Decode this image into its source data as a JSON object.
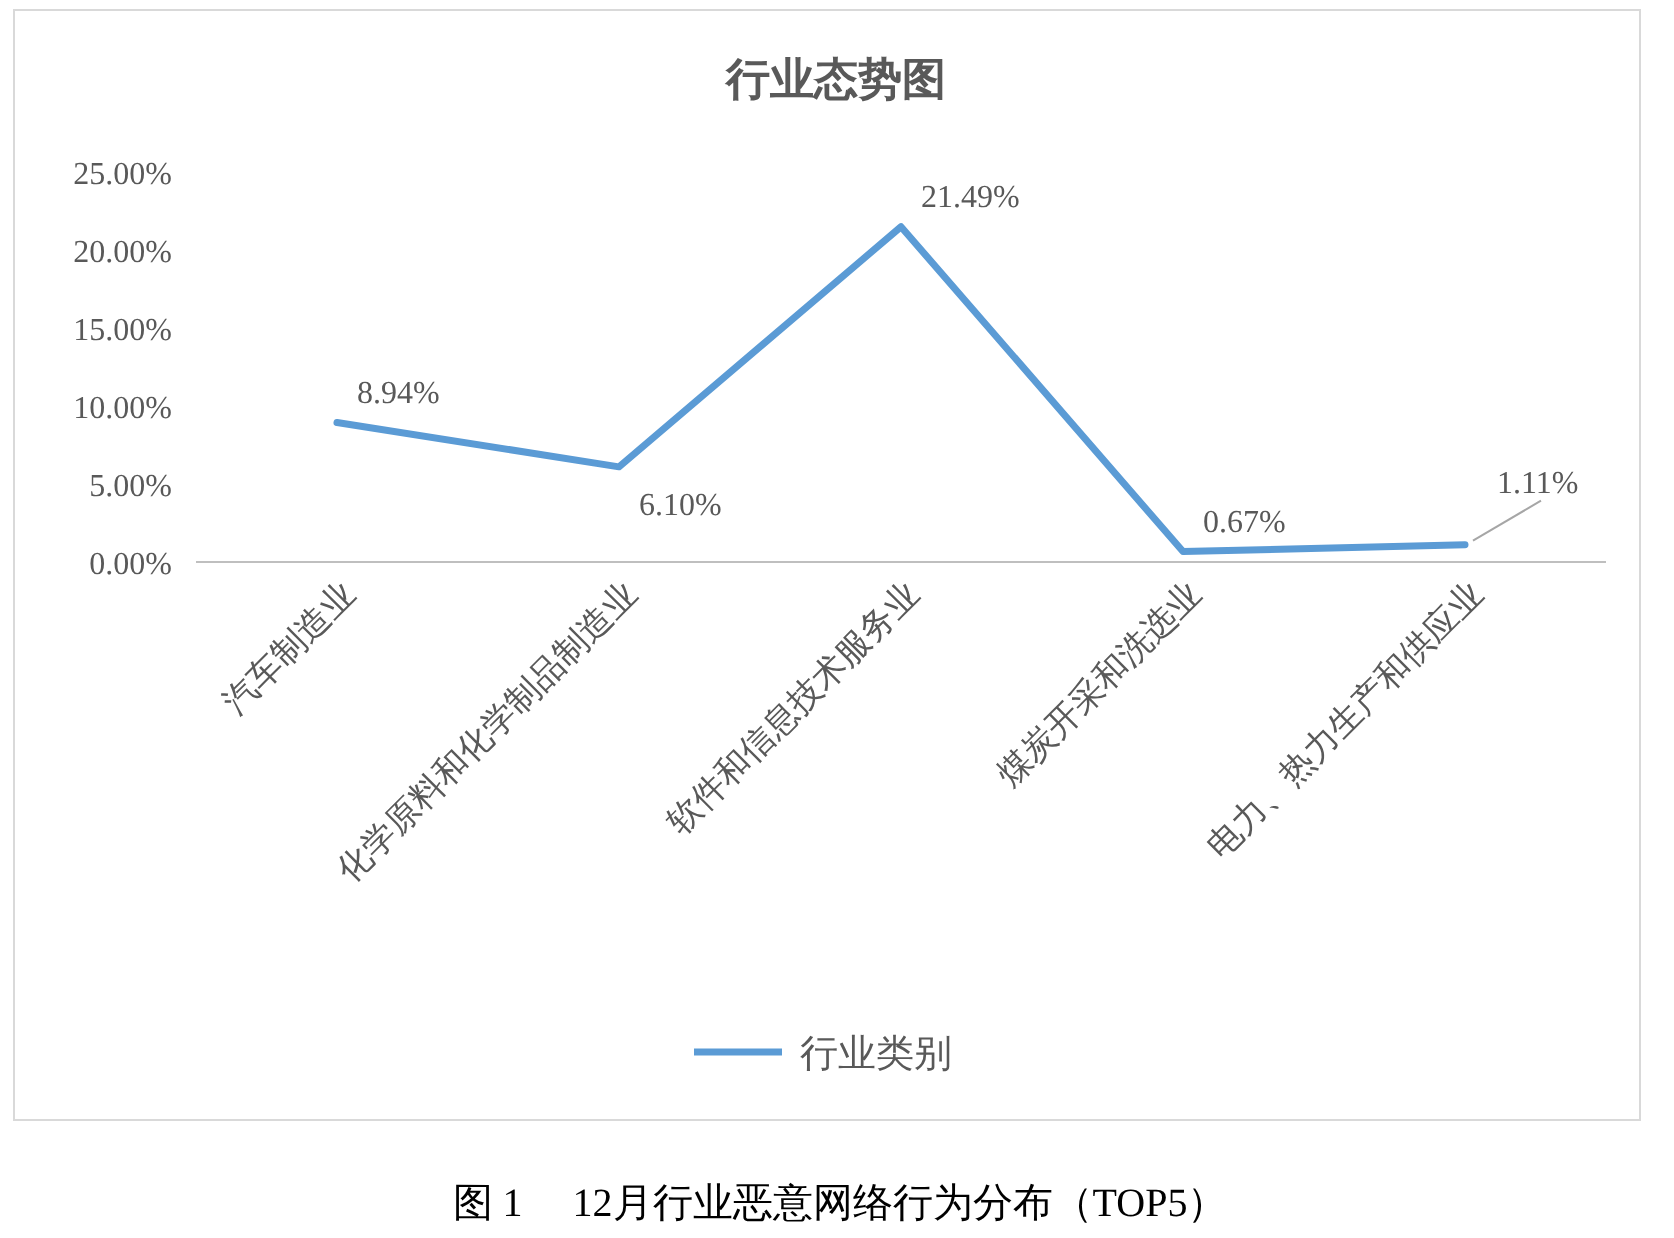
{
  "chart_data": {
    "type": "line",
    "title": "行业态势图",
    "categories": [
      "汽车制造业",
      "化学原料和化学制品制造业",
      "软件和信息技术服务业",
      "煤炭开采和洗选业",
      "电力、热力生产和供应业"
    ],
    "series": [
      {
        "name": "行业类别",
        "color": "#5b9bd5",
        "values": [
          8.94,
          6.1,
          21.49,
          0.67,
          1.11
        ],
        "value_labels": [
          "8.94%",
          "6.10%",
          "21.49%",
          "0.67%",
          "1.11%"
        ]
      }
    ],
    "ylim": [
      0,
      25
    ],
    "yticks": [
      {
        "value": 0,
        "label": "0.00%"
      },
      {
        "value": 5,
        "label": "5.00%"
      },
      {
        "value": 10,
        "label": "10.00%"
      },
      {
        "value": 15,
        "label": "15.00%"
      },
      {
        "value": 20,
        "label": "20.00%"
      },
      {
        "value": 25,
        "label": "25.00%"
      }
    ],
    "grid": false,
    "legend": "bottom",
    "marker": "none",
    "line_style": "solid",
    "annotations": [
      "图 1　 12月行业恶意网络行为分布（TOP5）"
    ]
  }
}
